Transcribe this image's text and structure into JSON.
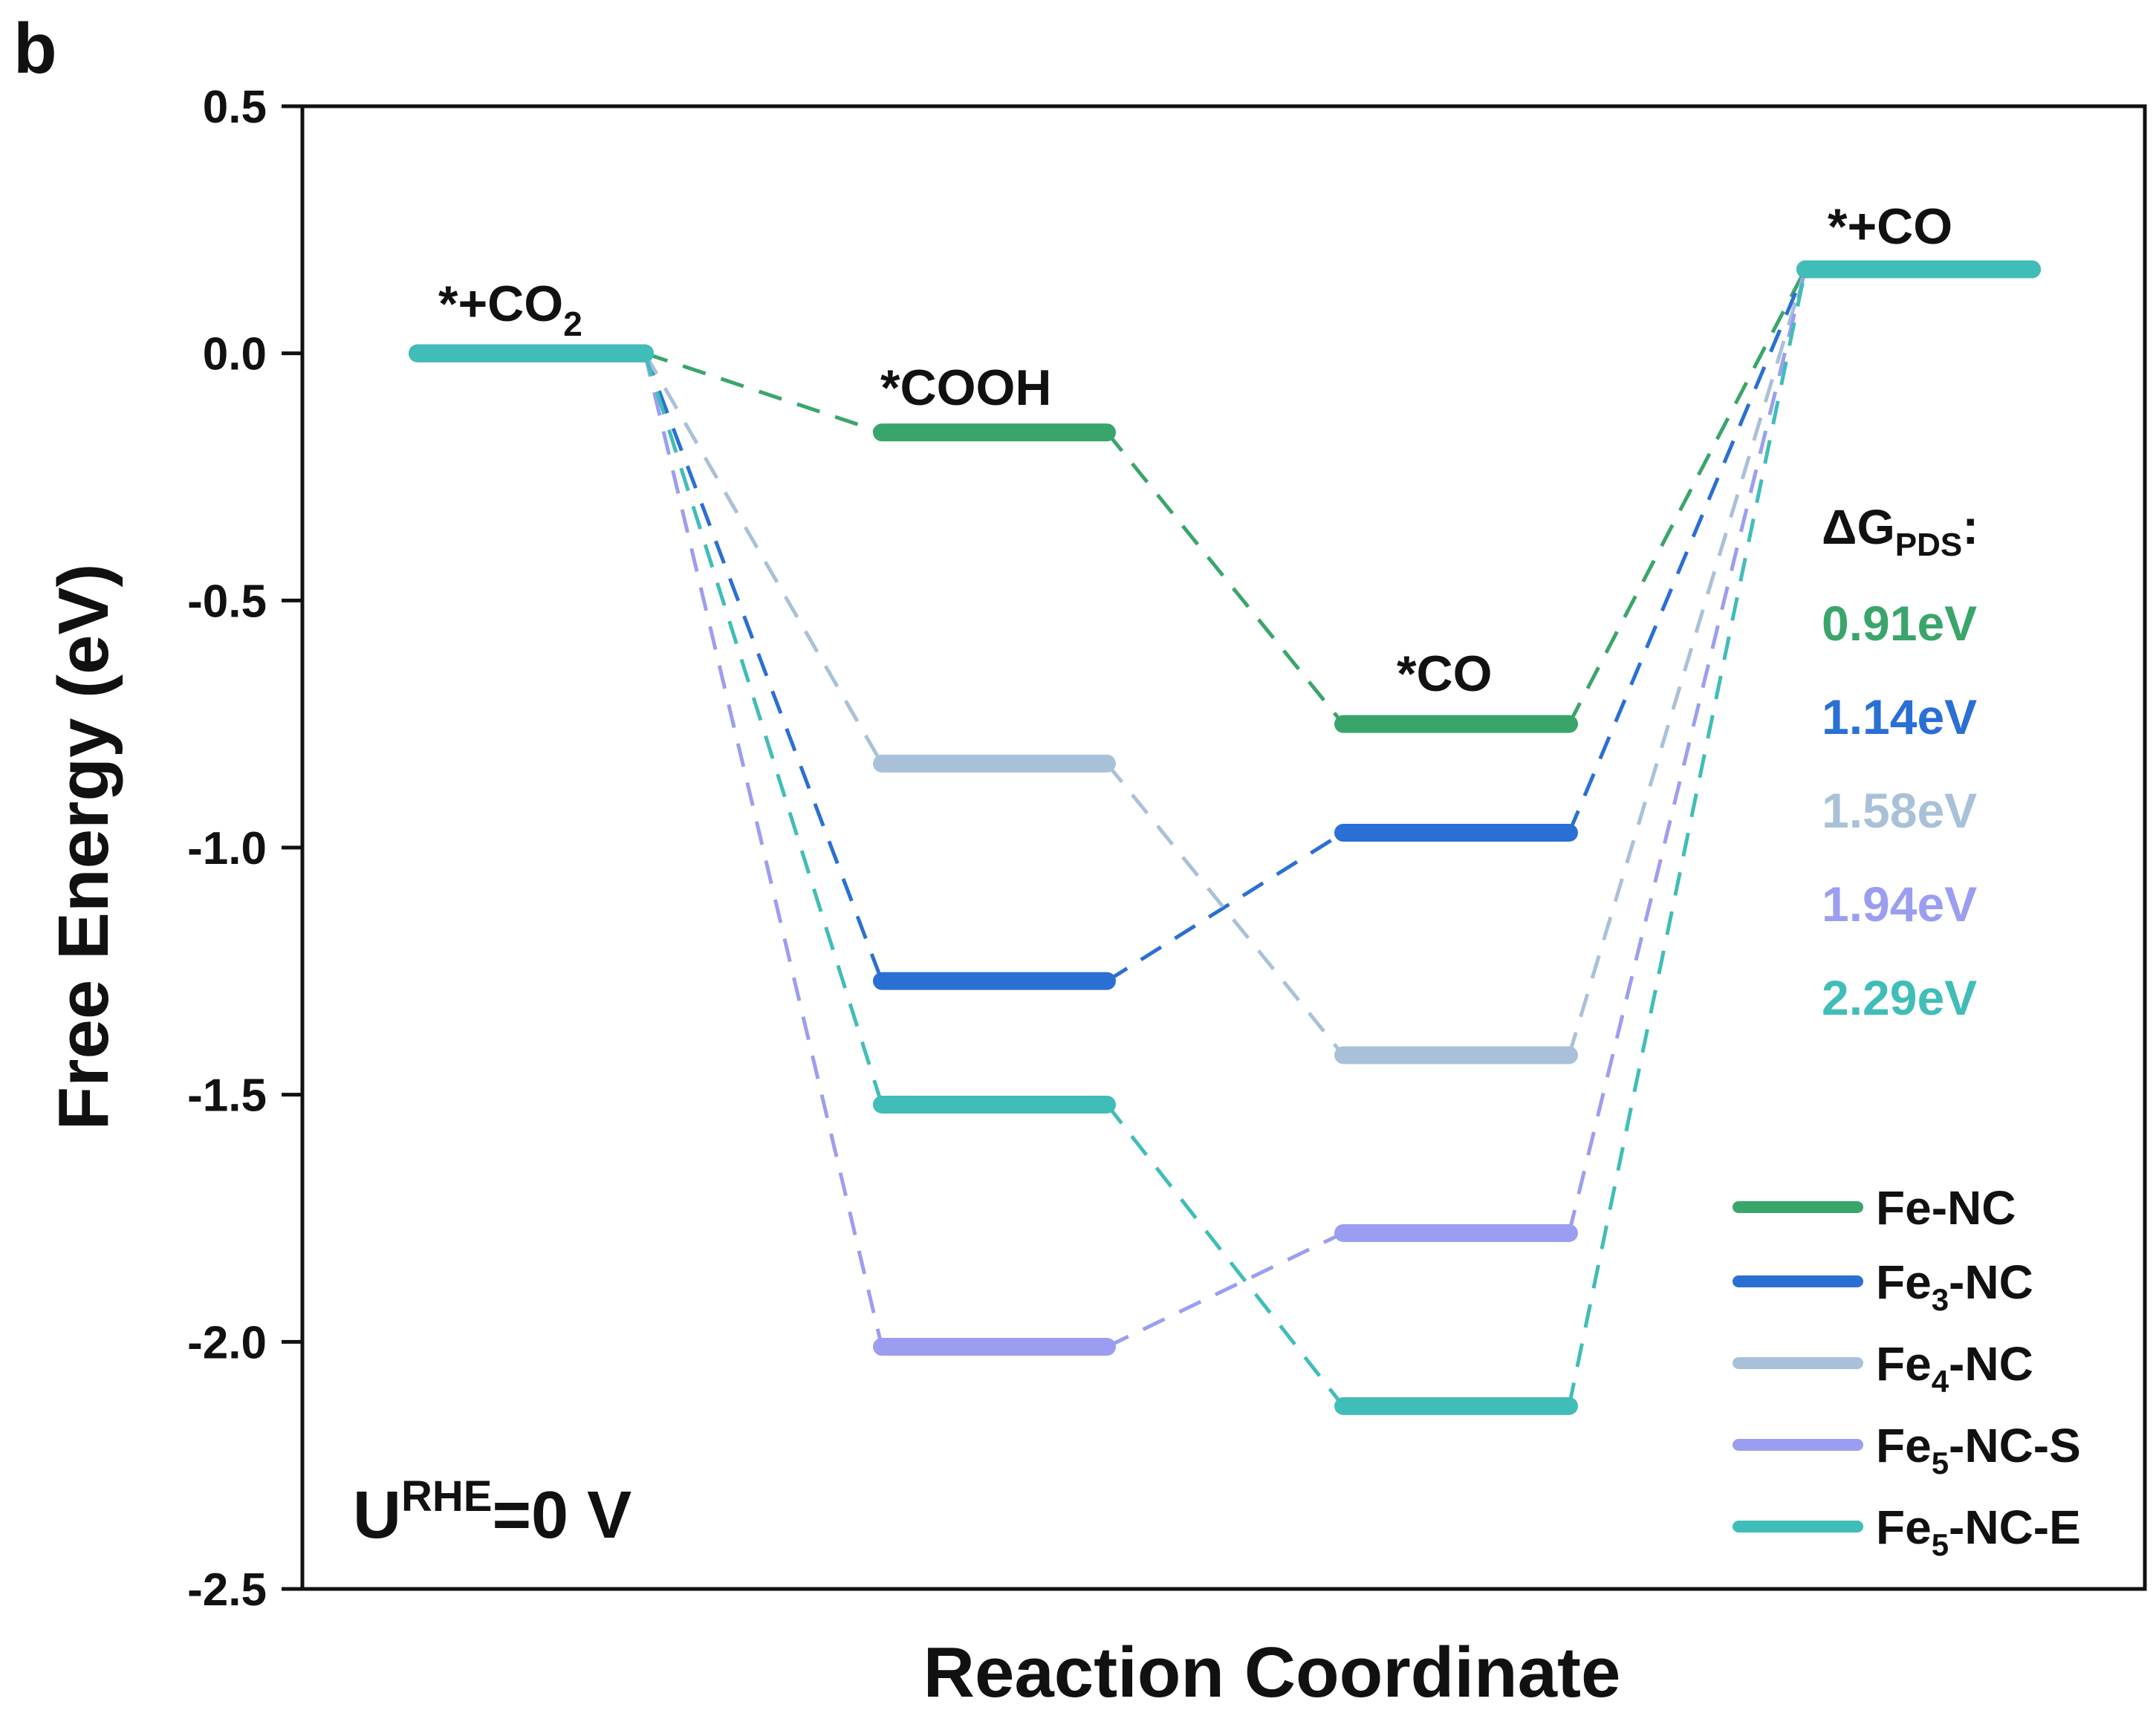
{
  "panel_label": "b",
  "chart_data": {
    "type": "line",
    "title": "",
    "xlabel": "Reaction Coordinate",
    "ylabel": "Free Energy (eV)",
    "ylim": [
      -2.5,
      0.5
    ],
    "yticks": [
      {
        "value": 0.5,
        "label": "0.5"
      },
      {
        "value": 0.0,
        "label": "0.0"
      },
      {
        "value": -0.5,
        "label": "-0.5"
      },
      {
        "value": -1.0,
        "label": "-1.0"
      },
      {
        "value": -1.5,
        "label": "-1.5"
      },
      {
        "value": -2.0,
        "label": "-2.0"
      },
      {
        "value": -2.5,
        "label": "-2.5"
      }
    ],
    "grid": false,
    "legend_position": "bottom-right",
    "states": [
      {
        "main": "*+CO",
        "sub": "2"
      },
      {
        "main": "*COOH",
        "sub": ""
      },
      {
        "main": "*CO",
        "sub": ""
      },
      {
        "main": "*+CO",
        "sub": ""
      }
    ],
    "series": [
      {
        "name_main": "Fe-NC",
        "name_sub": "",
        "name_suffix": "",
        "color": "#3aa56a",
        "values": [
          0.0,
          -0.16,
          -0.75,
          0.17
        ],
        "dg_pds": "0.91eV"
      },
      {
        "name_main": "Fe",
        "name_sub": "3",
        "name_suffix": "-NC",
        "color": "#2a6fd3",
        "values": [
          0.0,
          -1.27,
          -0.97,
          0.17
        ],
        "dg_pds": "1.14eV"
      },
      {
        "name_main": "Fe",
        "name_sub": "4",
        "name_suffix": "-NC",
        "color": "#a9c1d8",
        "values": [
          0.0,
          -0.83,
          -1.42,
          0.17
        ],
        "dg_pds": "1.58eV"
      },
      {
        "name_main": "Fe",
        "name_sub": "5",
        "name_suffix": "-NC-S",
        "color": "#9b9ef0",
        "values": [
          0.0,
          -2.01,
          -1.78,
          0.17
        ],
        "dg_pds": "1.94eV"
      },
      {
        "name_main": "Fe",
        "name_sub": "5",
        "name_suffix": "-NC-E",
        "color": "#40bdb8",
        "values": [
          0.0,
          -1.52,
          -2.13,
          0.17
        ],
        "dg_pds": "2.29eV"
      }
    ],
    "annotations": {
      "dg_title_main": "ΔG",
      "dg_title_sub": "PDS",
      "dg_title_suffix": ":",
      "potential_main": "U",
      "potential_sup": "RHE",
      "potential_suffix": "=0 V"
    }
  }
}
